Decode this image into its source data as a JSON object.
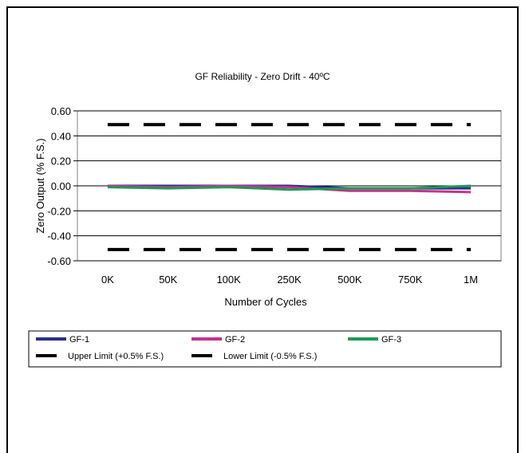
{
  "chart_data": {
    "type": "line",
    "title": "GF Reliability - Zero Drift - 40ºC",
    "xlabel": "Number of Cycles",
    "ylabel": "Zero Output (% F.S.)",
    "categories": [
      "0K",
      "50K",
      "100K",
      "250K",
      "500K",
      "750K",
      "1M"
    ],
    "ylim": [
      -0.6,
      0.6
    ],
    "yticks": [
      "0.60",
      "0.40",
      "0.20",
      "0.00",
      "-0.20",
      "-0.40",
      "-0.60"
    ],
    "grid": "horizontal",
    "legend_position": "bottom",
    "series": [
      {
        "name": "GF-1",
        "color": "#2b2f8f",
        "style": "solid",
        "values": [
          0.0,
          0.0,
          0.0,
          0.0,
          -0.02,
          -0.02,
          -0.02
        ]
      },
      {
        "name": "GF-2",
        "color": "#c4338c",
        "style": "solid",
        "values": [
          0.0,
          -0.01,
          0.0,
          -0.01,
          -0.04,
          -0.04,
          -0.05
        ]
      },
      {
        "name": "GF-3",
        "color": "#1e9a57",
        "style": "solid",
        "values": [
          -0.01,
          -0.02,
          -0.01,
          -0.03,
          -0.02,
          -0.02,
          0.0
        ]
      },
      {
        "name": "Upper Limit (+0.5% F.S.)",
        "color": "#000000",
        "style": "dashed",
        "values": [
          0.49,
          0.49,
          0.49,
          0.49,
          0.49,
          0.49,
          0.49
        ]
      },
      {
        "name": "Lower Limit (-0.5% F.S.)",
        "color": "#000000",
        "style": "dashed",
        "values": [
          -0.51,
          -0.51,
          -0.51,
          -0.51,
          -0.51,
          -0.51,
          -0.51
        ]
      }
    ]
  }
}
